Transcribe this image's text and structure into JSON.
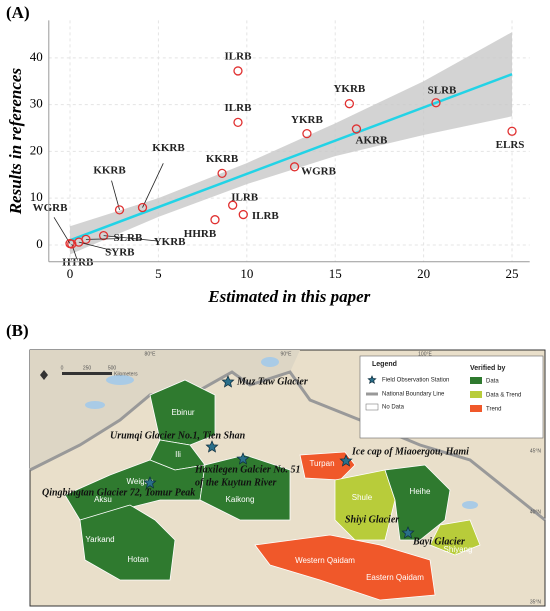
{
  "chart_data": {
    "type": "scatter",
    "panel_label": "(A)",
    "xlabel": "Estimated in this paper",
    "ylabel": "Results in references",
    "x": [
      9.5,
      9.5,
      15.8,
      20.7,
      13.4,
      16.2,
      25.0,
      8.6,
      12.7,
      2.8,
      4.1,
      1.9,
      9.2,
      8.2,
      9.8,
      0.9,
      0.5,
      0.1,
      0.0
    ],
    "values": [
      37.2,
      26.2,
      30.2,
      30.4,
      23.8,
      24.8,
      24.3,
      15.3,
      16.7,
      7.5,
      8.0,
      2.0,
      8.5,
      5.4,
      6.5,
      1.2,
      0.6,
      0.2,
      0.3
    ],
    "point_labels": [
      "ILRB",
      "ILRB",
      "YKRB",
      "SLRB",
      "YKRB",
      "AKRB",
      "ELRS",
      "KKRB",
      "WGRB",
      "KKRB",
      "KKRB",
      "YKRB",
      "ILRB",
      "HHRB",
      "ILRB",
      "SLRB",
      "SYRB",
      "HTRB",
      "WGRB"
    ],
    "color": "#e03030",
    "fit": {
      "x": [
        0,
        25
      ],
      "values": [
        1,
        36.5
      ],
      "color": "#22d3e6"
    },
    "band": {
      "x": [
        0,
        5,
        10,
        15,
        20,
        25
      ],
      "upper": [
        4,
        10,
        17.5,
        26,
        35,
        45.5
      ],
      "lower": [
        -2,
        6,
        13,
        19,
        23.5,
        27.5
      ],
      "color": "#c8c8c8"
    },
    "xlim": [
      -1.2,
      26
    ],
    "ylim": [
      -3.6,
      48
    ],
    "xticks": [
      0,
      5,
      10,
      15,
      20,
      25
    ],
    "yticks": [
      0,
      10,
      20,
      30,
      40
    ],
    "grid": true
  },
  "panel_b": {
    "panel_label": "(B)",
    "regions": [
      "Ebinur",
      "Ili",
      "Weigan",
      "Aksu",
      "Kaikong",
      "Yarkand",
      "Hotan",
      "Turpan",
      "Shule",
      "Heihe",
      "Shiyang",
      "Western Qaidam",
      "Eastern Qaidam"
    ],
    "stations": [
      "Muz Taw Glacier",
      "Urumqi Glacier No.1, Tien Shan",
      "Haxilegen Galcier No. 51",
      "of the Kuytun River",
      "Ice cap of Miaoergou, Hami",
      "Qingbingtan Glacier 72, Tomur Peak",
      "Shiyi Glacier",
      "Bayi Glacier"
    ],
    "legend": {
      "title": "Legend",
      "items": [
        "Field Observation Station",
        "National Boundary Line",
        "No Data"
      ],
      "verified_title": "Verified by",
      "verified": [
        "Data",
        "Data & Trend",
        "Trend"
      ]
    },
    "graticule": [
      "80°E",
      "90°E",
      "100°E",
      "45°N",
      "40°N",
      "35°N"
    ],
    "scale": [
      "0",
      "250",
      "500",
      "Kilometers"
    ]
  }
}
